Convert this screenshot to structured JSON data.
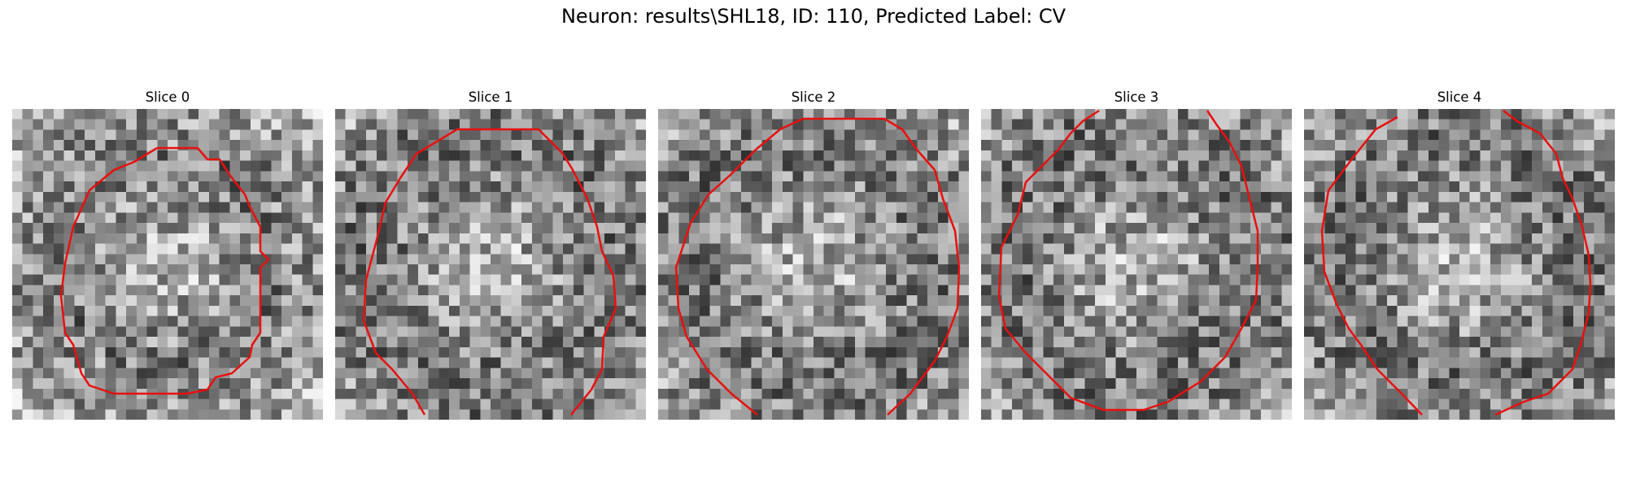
{
  "figure": {
    "title": "Neuron: results\\SHL18, ID: 110, Predicted Label: CV"
  },
  "colors": {
    "contour": "#e8100f",
    "colormap": "gray"
  },
  "panels": [
    {
      "label": "Slice 0"
    },
    {
      "label": "Slice 1"
    },
    {
      "label": "Slice 2"
    },
    {
      "label": "Slice 3"
    },
    {
      "label": "Slice 4"
    }
  ]
}
